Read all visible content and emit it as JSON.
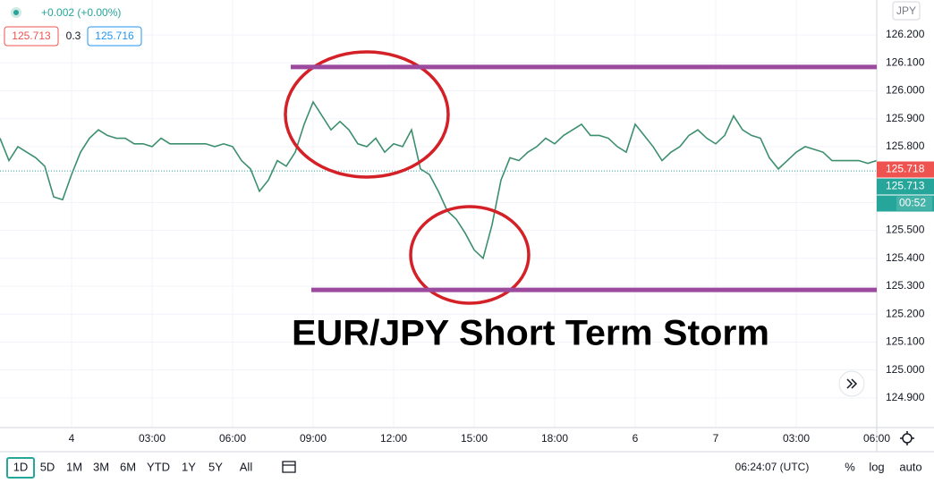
{
  "chart_data": {
    "type": "line",
    "title": "EUR/JPY Short Term Storm",
    "categories": [
      null,
      null,
      null,
      null,
      null,
      null,
      null,
      null,
      "4",
      null,
      null,
      null,
      null,
      null,
      null,
      null,
      null,
      "03:00",
      null,
      null,
      null,
      null,
      null,
      null,
      null,
      null,
      "06:00",
      null,
      null,
      null,
      null,
      null,
      null,
      null,
      null,
      "09:00",
      null,
      null,
      null,
      null,
      null,
      null,
      null,
      null,
      "12:00",
      null,
      null,
      null,
      null,
      null,
      null,
      null,
      null,
      "15:00",
      null,
      null,
      null,
      null,
      null,
      null,
      null,
      null,
      "18:00",
      null,
      null,
      null,
      null,
      null,
      null,
      null,
      null,
      "6",
      null,
      null,
      null,
      null,
      null,
      null,
      null,
      null,
      "7",
      null,
      null,
      null,
      null,
      null,
      null,
      null,
      null,
      "03:00",
      null,
      null,
      null,
      null,
      null,
      null,
      null,
      null,
      "06:00"
    ],
    "series": [
      {
        "color": "#3c8f6e",
        "values": [
          125.83,
          125.75,
          125.8,
          125.78,
          125.76,
          125.73,
          125.62,
          125.61,
          125.7,
          125.78,
          125.83,
          125.86,
          125.84,
          125.83,
          125.83,
          125.81,
          125.81,
          125.8,
          125.83,
          125.81,
          125.81,
          125.81,
          125.81,
          125.81,
          125.8,
          125.81,
          125.8,
          125.75,
          125.72,
          125.64,
          125.68,
          125.75,
          125.73,
          125.78,
          125.88,
          125.96,
          125.91,
          125.86,
          125.89,
          125.86,
          125.81,
          125.8,
          125.83,
          125.78,
          125.81,
          125.8,
          125.86,
          125.72,
          125.7,
          125.64,
          125.57,
          125.54,
          125.49,
          125.43,
          125.4,
          125.52,
          125.68,
          125.76,
          125.75,
          125.78,
          125.8,
          125.83,
          125.81,
          125.84,
          125.86,
          125.88,
          125.84,
          125.84,
          125.83,
          125.8,
          125.78,
          125.88,
          125.84,
          125.8,
          125.75,
          125.78,
          125.8,
          125.84,
          125.86,
          125.83,
          125.81,
          125.84,
          125.91,
          125.86,
          125.84,
          125.83,
          125.76,
          125.72,
          125.75,
          125.78,
          125.8,
          125.79,
          125.78,
          125.75,
          125.75,
          125.75,
          125.75,
          125.74,
          125.75
        ]
      }
    ],
    "ylim": [
      124.794,
      126.325
    ],
    "yticks": [
      {
        "value": 124.9,
        "label": "124.900"
      },
      {
        "value": 125.0,
        "label": "125.000"
      },
      {
        "value": 125.1,
        "label": "125.100"
      },
      {
        "value": 125.2,
        "label": "125.200"
      },
      {
        "value": 125.3,
        "label": "125.300"
      },
      {
        "value": 125.4,
        "label": "125.400"
      },
      {
        "value": 125.5,
        "label": "125.500"
      },
      {
        "value": 125.6,
        "label": "125.600"
      },
      {
        "value": 125.7,
        "label": "125.700"
      },
      {
        "value": 125.8,
        "label": "125.800"
      },
      {
        "value": 125.9,
        "label": "125.900"
      },
      {
        "value": 126.0,
        "label": "126.000"
      },
      {
        "value": 126.1,
        "label": "126.100"
      },
      {
        "value": 126.2,
        "label": "126.200"
      }
    ],
    "grid": true,
    "hlines": [
      {
        "value": 126.085,
        "color": "#9b4a9e"
      },
      {
        "value": 125.287,
        "color": "#9b4a9e"
      }
    ],
    "price_tags": {
      "last": 125.718,
      "bid": 125.713,
      "countdown": "00:52"
    }
  },
  "header": {
    "change": "+0.002 (+0.00%)",
    "bid": "125.713",
    "spread": "0.3",
    "ask": "125.716",
    "currency": "JPY"
  },
  "toolbar": {
    "ranges": [
      "1D",
      "5D",
      "1M",
      "3M",
      "6M",
      "YTD",
      "1Y",
      "5Y",
      "All"
    ],
    "clock": "06:24:07 (UTC)",
    "percent": "%",
    "log": "log",
    "auto": "auto"
  }
}
